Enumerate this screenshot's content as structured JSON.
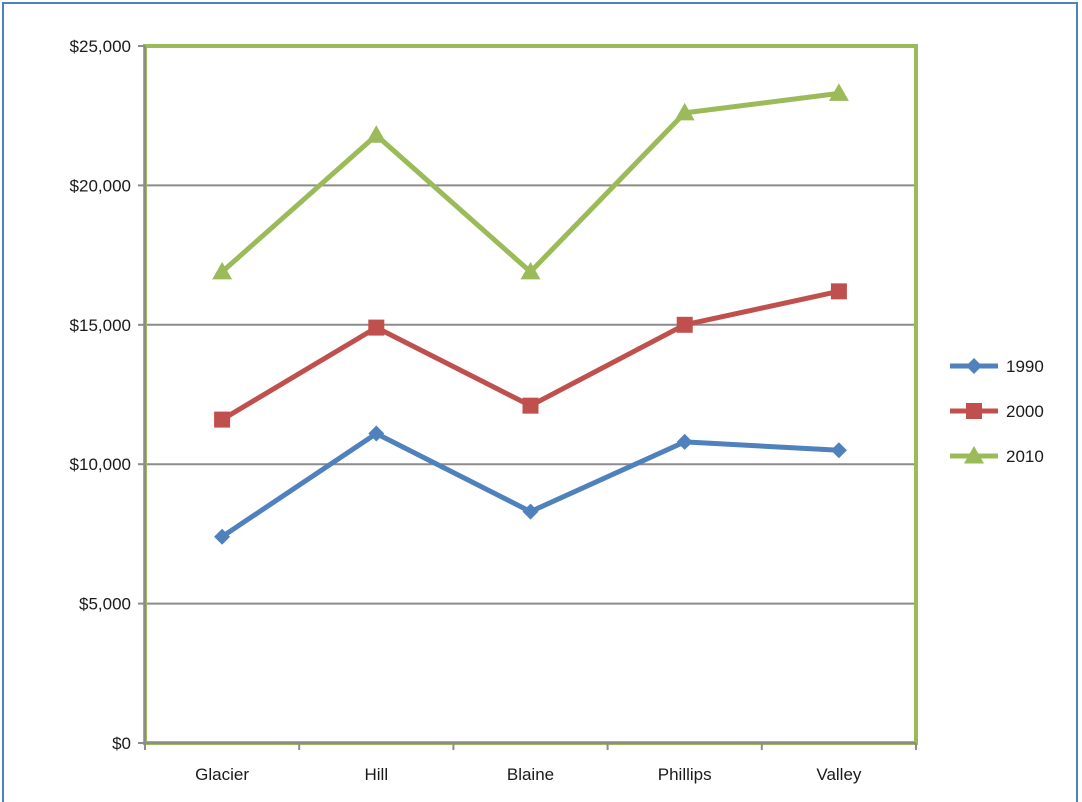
{
  "chart_data": {
    "type": "line",
    "title": "",
    "xlabel": "",
    "ylabel": "",
    "categories": [
      "Glacier",
      "Hill",
      "Blaine",
      "Phillips",
      "Valley"
    ],
    "ylim": [
      0,
      25000
    ],
    "yticks": [
      0,
      5000,
      10000,
      15000,
      20000,
      25000
    ],
    "ytick_labels": [
      "$0",
      "$5,000",
      "$10,000",
      "$15,000",
      "$20,000",
      "$25,000"
    ],
    "grid": "horizontal",
    "legend_position": "right",
    "plot_border_color": "#9bbb59",
    "series": [
      {
        "name": "1990",
        "color": "#4f81bd",
        "marker": "diamond",
        "values": [
          7400,
          11100,
          8300,
          10800,
          10500
        ]
      },
      {
        "name": "2000",
        "color": "#c0504d",
        "marker": "square",
        "values": [
          11600,
          14900,
          12100,
          15000,
          16200
        ]
      },
      {
        "name": "2010",
        "color": "#9bbb59",
        "marker": "triangle",
        "values": [
          16900,
          21800,
          16900,
          22600,
          23300
        ]
      }
    ]
  }
}
